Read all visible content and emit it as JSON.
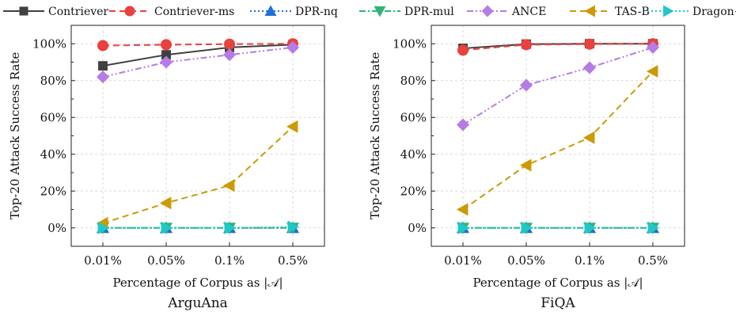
{
  "chart_data": [
    {
      "type": "line",
      "title": "ArguAna",
      "xlabel": "Percentage of Corpus as |𝒜|",
      "ylabel": "Top-20 Attack Success Rate",
      "categories": [
        "0.01%",
        "0.05%",
        "0.1%",
        "0.5%"
      ],
      "ylim": [
        -10,
        110
      ],
      "yticks": [
        "0%",
        "20%",
        "40%",
        "60%",
        "80%",
        "100%"
      ],
      "grid": true,
      "series": [
        {
          "name": "Contriever",
          "values": [
            88,
            94,
            98,
            99.5
          ]
        },
        {
          "name": "Contriever-ms",
          "values": [
            99,
            99.5,
            99.8,
            100
          ]
        },
        {
          "name": "DPR-nq",
          "values": [
            0,
            0,
            0,
            0
          ]
        },
        {
          "name": "DPR-mul",
          "values": [
            0,
            0,
            0,
            0
          ]
        },
        {
          "name": "ANCE",
          "values": [
            82,
            90,
            94,
            98
          ]
        },
        {
          "name": "TAS-B",
          "values": [
            2.5,
            13.5,
            23,
            55
          ]
        },
        {
          "name": "Dragon+",
          "values": [
            0,
            0,
            0,
            0.5
          ]
        }
      ]
    },
    {
      "type": "line",
      "title": "FiQA",
      "xlabel": "Percentage of Corpus as |𝒜|",
      "ylabel": "Top-20 Attack Success Rate",
      "categories": [
        "0.01%",
        "0.05%",
        "0.1%",
        "0.5%"
      ],
      "ylim": [
        -10,
        110
      ],
      "yticks": [
        "0%",
        "20%",
        "40%",
        "60%",
        "80%",
        "100%"
      ],
      "grid": true,
      "series": [
        {
          "name": "Contriever",
          "values": [
            97.5,
            99.8,
            100,
            100
          ]
        },
        {
          "name": "Contriever-ms",
          "values": [
            96.5,
            99.5,
            99.8,
            100
          ]
        },
        {
          "name": "DPR-nq",
          "values": [
            0,
            0,
            0,
            0
          ]
        },
        {
          "name": "DPR-mul",
          "values": [
            0,
            0,
            0,
            0
          ]
        },
        {
          "name": "ANCE",
          "values": [
            56,
            77.5,
            87,
            98
          ]
        },
        {
          "name": "TAS-B",
          "values": [
            10,
            34,
            49,
            85
          ]
        },
        {
          "name": "Dragon+",
          "values": [
            0,
            0,
            0,
            0
          ]
        }
      ]
    }
  ],
  "legend": {
    "placement": "top",
    "entries": [
      {
        "name": "Contriever",
        "color": "#404040",
        "marker": "square",
        "dash": "solid"
      },
      {
        "name": "Contriever-ms",
        "color": "#e8413e",
        "marker": "circle",
        "dash": "dashed"
      },
      {
        "name": "DPR-nq",
        "color": "#1f6fd6",
        "marker": "triangle-up",
        "dash": "dotted"
      },
      {
        "name": "DPR-mul",
        "color": "#2fb576",
        "marker": "triangle-down",
        "dash": "dashdot"
      },
      {
        "name": "ANCE",
        "color": "#b57be6",
        "marker": "diamond",
        "dash": "dashdotdot"
      },
      {
        "name": "TAS-B",
        "color": "#cc9a06",
        "marker": "triangle-left",
        "dash": "dashed"
      },
      {
        "name": "Dragon+",
        "color": "#1ec8c8",
        "marker": "triangle-right",
        "dash": "dotted"
      }
    ]
  }
}
